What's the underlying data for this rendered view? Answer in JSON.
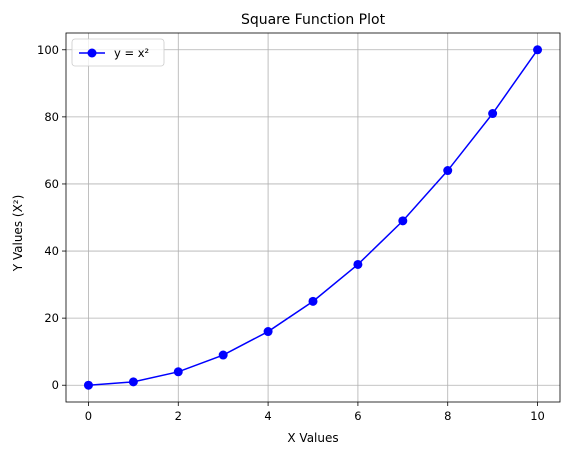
{
  "chart_data": {
    "type": "line",
    "title": "Square Function Plot",
    "xlabel": "X Values",
    "ylabel": "Y Values (X²)",
    "xlim": [
      -0.5,
      10.5
    ],
    "ylim": [
      -5,
      105
    ],
    "xticks": [
      0,
      2,
      4,
      6,
      8,
      10
    ],
    "yticks": [
      0,
      20,
      40,
      60,
      80,
      100
    ],
    "grid": true,
    "legend_position": "top-left",
    "series": [
      {
        "name": "y = x²",
        "color": "#0000ff",
        "marker": "circle",
        "x": [
          0,
          1,
          2,
          3,
          4,
          5,
          6,
          7,
          8,
          9,
          10
        ],
        "y": [
          0,
          1,
          4,
          9,
          16,
          25,
          36,
          49,
          64,
          81,
          100
        ]
      }
    ]
  }
}
